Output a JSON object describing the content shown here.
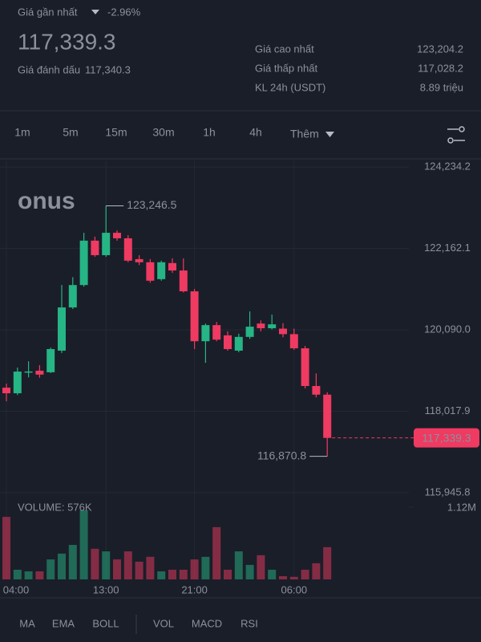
{
  "header": {
    "last_label": "Giá gần nhất",
    "change": "-2.96%",
    "price": "117,339.3",
    "mark_label": "Giá đánh dấu",
    "mark_price": "117,340.3",
    "stats": [
      {
        "label": "Giá cao nhất",
        "value": "123,204.2"
      },
      {
        "label": "Giá thấp nhất",
        "value": "117,028.2"
      },
      {
        "label": "KL 24h (USDT)",
        "value": "8.89 triệu"
      }
    ]
  },
  "intervals": [
    "1m",
    "5m",
    "15m",
    "30m",
    "1h",
    "4h"
  ],
  "more": "Thêm",
  "indicators": [
    "MA",
    "EMA",
    "BOLL",
    "VOL",
    "MACD",
    "RSI"
  ],
  "chart_data": {
    "type": "candlestick",
    "watermark": "onus",
    "categories": [
      "04:00",
      null,
      null,
      null,
      null,
      null,
      null,
      null,
      null,
      "13:00",
      null,
      null,
      null,
      null,
      null,
      null,
      null,
      "21:00",
      null,
      null,
      null,
      null,
      null,
      null,
      null,
      null,
      "06:00",
      null,
      null,
      null
    ],
    "open": [
      118618,
      118475,
      119000,
      119050,
      119010,
      119560,
      120660,
      121230,
      122360,
      121990,
      122560,
      122420,
      121890,
      121810,
      121380,
      121790,
      121600,
      121070,
      119800,
      120210,
      119950,
      119560,
      119910,
      120250,
      120130,
      120120,
      119980,
      119620,
      118660,
      118440
    ],
    "high": [
      118720,
      119130,
      119290,
      119190,
      119640,
      121230,
      121430,
      122560,
      122460,
      123246.5,
      122620,
      122500,
      121990,
      121890,
      121850,
      121910,
      121910,
      121130,
      120250,
      120290,
      120050,
      119990,
      120560,
      120330,
      120480,
      120260,
      120120,
      119680,
      118980,
      118500
    ],
    "low": [
      118270,
      118430,
      118880,
      118870,
      118990,
      119500,
      120620,
      121190,
      121950,
      121950,
      122360,
      121810,
      121740,
      121290,
      121340,
      121540,
      121040,
      119600,
      119250,
      119800,
      119560,
      119520,
      119860,
      120050,
      120100,
      119900,
      119580,
      118600,
      118370,
      116870.8
    ],
    "close": [
      118475,
      119027,
      119030,
      118950,
      119600,
      120660,
      121230,
      122360,
      121990,
      122560,
      122420,
      121850,
      121810,
      121340,
      121810,
      121600,
      121070,
      119800,
      120210,
      119840,
      119600,
      119910,
      120170,
      120130,
      120230,
      119980,
      119620,
      118660,
      118440,
      117339.3
    ],
    "up_color": "#26b585",
    "down_color": "#ef3a61",
    "ylim": [
      115780,
      124400
    ],
    "yticks": [
      {
        "value": 124234.2,
        "label": "124,234.2"
      },
      {
        "value": 122162.1,
        "label": "122,162.1"
      },
      {
        "value": 120090.0,
        "label": "120,090.0"
      },
      {
        "value": 118017.9,
        "label": "118,017.9"
      },
      {
        "value": 115945.8,
        "label": "115,945.8"
      }
    ],
    "high_annotation": {
      "value": 123246.5,
      "label": "123,246.5"
    },
    "low_annotation": {
      "value": 116870.8,
      "label": "116,870.8"
    },
    "last_price": {
      "value": 117339.3,
      "label": "117,339.3"
    },
    "volume": {
      "title": "VOLUME: 576K",
      "ylim": [
        0,
        1120000
      ],
      "max_tick": {
        "value": 1120000,
        "label": "1.12M"
      },
      "values": [
        970000,
        150000,
        125000,
        125000,
        310000,
        400000,
        535000,
        1070000,
        475000,
        435000,
        310000,
        435000,
        275000,
        350000,
        125000,
        150000,
        150000,
        310000,
        350000,
        810000,
        150000,
        435000,
        225000,
        375000,
        150000,
        50000,
        40000,
        150000,
        250000,
        500000
      ]
    }
  }
}
